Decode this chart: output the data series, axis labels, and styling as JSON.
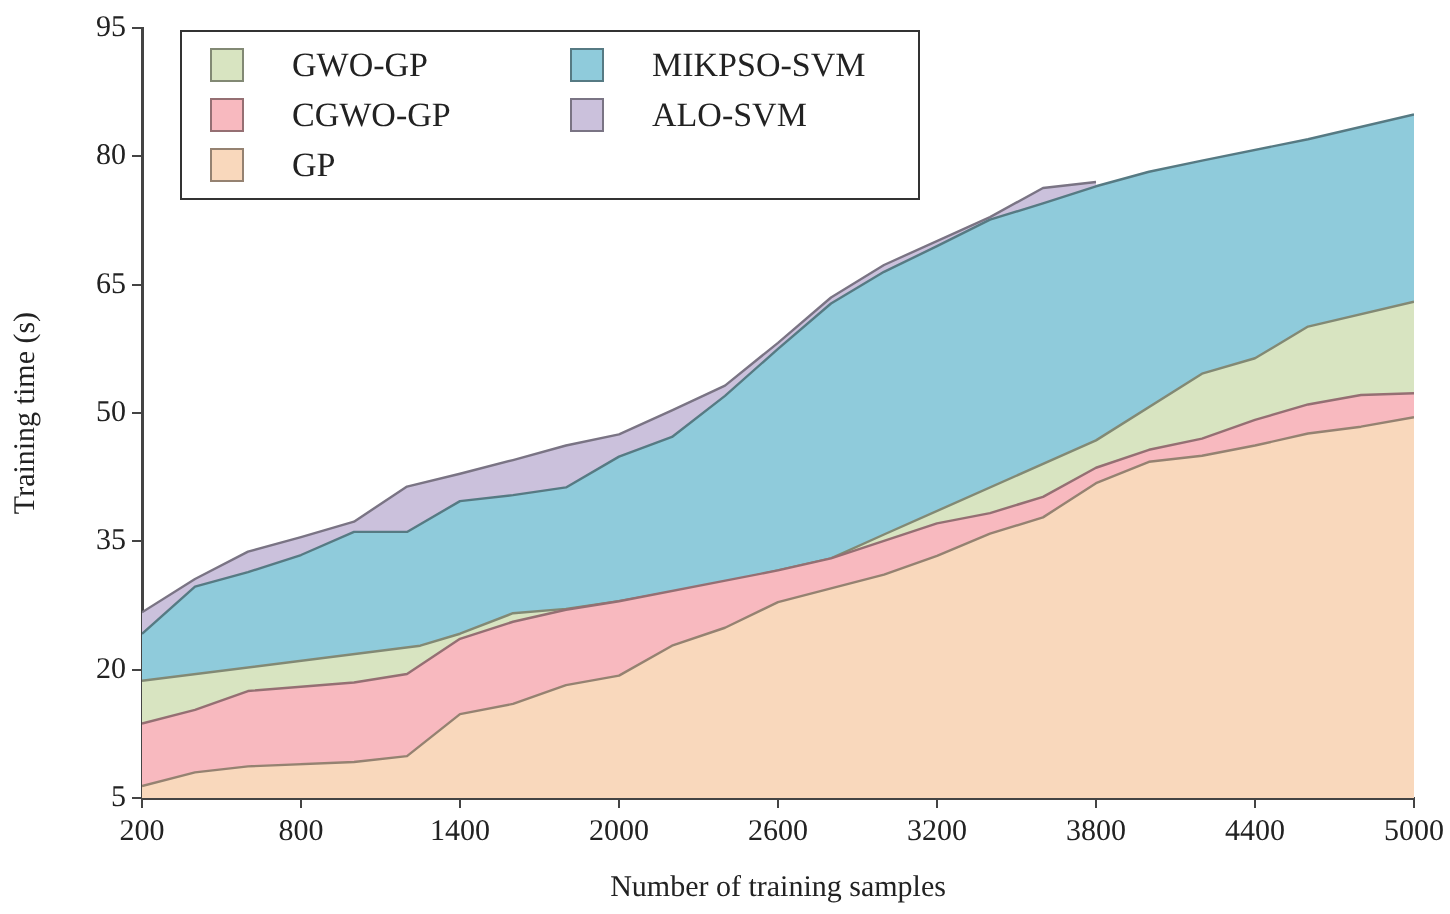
{
  "chart_data": {
    "type": "area",
    "xlabel": "Number of training samples",
    "ylabel": "Training time (s)",
    "xlim": [
      200,
      5000
    ],
    "xticks": [
      200,
      800,
      1400,
      2000,
      2600,
      3200,
      3800,
      4400,
      5000
    ],
    "ylim": [
      5,
      95
    ],
    "yticks": [
      5,
      20,
      35,
      50,
      65,
      80,
      95
    ],
    "grid": false,
    "legend": "top left",
    "series": [
      {
        "name": "GWO-GP",
        "color": "#d8e4c1",
        "x": [
          200,
          1250,
          1400,
          1600,
          1800,
          2000,
          2400,
          2800,
          3000,
          3800,
          4200,
          4400,
          4600,
          5000
        ],
        "values": [
          18.7,
          22.8,
          24.2,
          26.6,
          27.1,
          28.0,
          30.2,
          33.0,
          35.8,
          46.8,
          54.6,
          56.4,
          60.1,
          63.0
        ]
      },
      {
        "name": "CGWO-GP",
        "color": "#f8b9bf",
        "x": [
          200,
          400,
          600,
          1000,
          1200,
          1400,
          1600,
          1800,
          2000,
          2600,
          2800,
          3200,
          3400,
          3600,
          3800,
          4000,
          4200,
          4400,
          4600,
          4800,
          5000
        ],
        "values": [
          13.7,
          15.3,
          17.5,
          18.5,
          19.5,
          23.6,
          25.6,
          27.0,
          28.0,
          31.6,
          33.0,
          37.1,
          38.3,
          40.2,
          43.6,
          45.7,
          47.0,
          49.2,
          51.0,
          52.1,
          52.3
        ]
      },
      {
        "name": "GP",
        "color": "#f9d8bc",
        "x": [
          200,
          400,
          600,
          1000,
          1200,
          1400,
          1600,
          1800,
          2000,
          2200,
          2400,
          2600,
          3000,
          3200,
          3400,
          3600,
          3800,
          4000,
          4200,
          4400,
          4600,
          4800,
          5000
        ],
        "values": [
          6.4,
          8.0,
          8.7,
          9.2,
          9.9,
          14.8,
          16.0,
          18.2,
          19.3,
          22.8,
          24.9,
          27.9,
          31.1,
          33.3,
          35.9,
          37.8,
          41.8,
          44.3,
          45.0,
          46.2,
          47.6,
          48.4,
          49.5
        ]
      },
      {
        "name": "MIKPSO-SVM",
        "color": "#8fcbdb",
        "x": [
          200,
          400,
          600,
          800,
          1000,
          1200,
          1400,
          1600,
          1800,
          2000,
          2200,
          2400,
          2600,
          2800,
          3000,
          3200,
          3400,
          3600,
          3800,
          4000,
          4200,
          4600,
          5000
        ],
        "values": [
          24.2,
          29.7,
          31.4,
          33.4,
          36.1,
          36.1,
          39.7,
          40.4,
          41.3,
          44.9,
          47.2,
          52.0,
          57.5,
          62.8,
          66.5,
          69.5,
          72.6,
          74.5,
          76.5,
          78.2,
          79.5,
          82.0,
          84.9
        ]
      },
      {
        "name": "ALO-SVM",
        "color": "#cbc1dc",
        "x": [
          200,
          400,
          600,
          800,
          1000,
          1200,
          1400,
          1600,
          1800,
          2000,
          2200,
          2400,
          2600,
          2800,
          3000,
          3400,
          3600,
          3800
        ],
        "values": [
          26.7,
          30.6,
          33.8,
          35.5,
          37.3,
          41.4,
          42.9,
          44.5,
          46.2,
          47.5,
          50.3,
          53.2,
          58.2,
          63.5,
          67.3,
          72.9,
          76.3,
          77.0
        ]
      }
    ]
  }
}
